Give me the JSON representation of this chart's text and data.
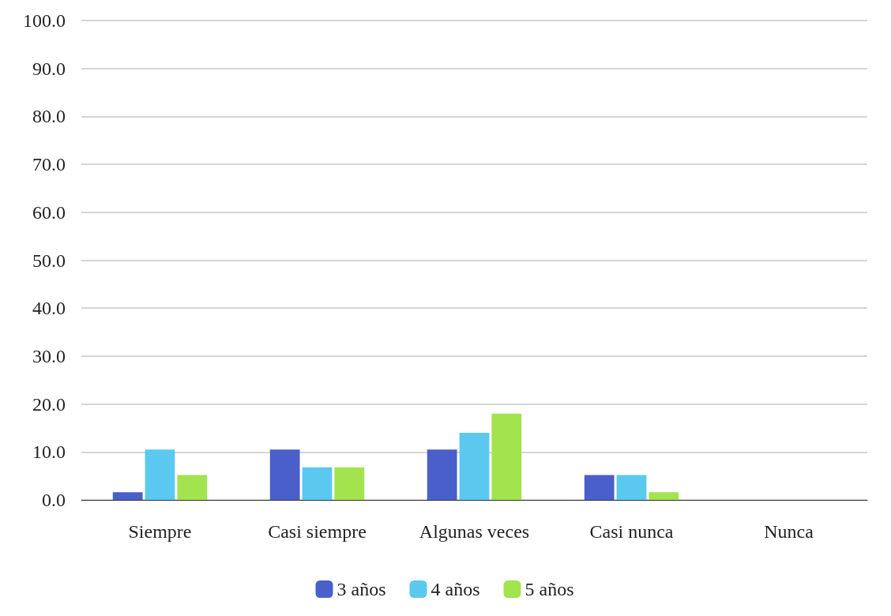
{
  "chart_data": {
    "type": "bar",
    "categories": [
      "Siempre",
      "Casi siempre",
      "Algunas veces",
      "Casi nunca",
      "Nunca"
    ],
    "series": [
      {
        "name": "3 años",
        "color": "#4a5fc9",
        "values": [
          1.6,
          10.5,
          10.5,
          5.2,
          0
        ]
      },
      {
        "name": "4 años",
        "color": "#5bc8ef",
        "values": [
          10.5,
          6.8,
          14.0,
          5.2,
          0
        ]
      },
      {
        "name": "5 años",
        "color": "#a2e34e",
        "values": [
          5.2,
          6.8,
          18.0,
          1.6,
          0
        ]
      }
    ],
    "ylim": [
      0,
      100
    ],
    "yticks": [
      {
        "value": 0,
        "label": "0.0"
      },
      {
        "value": 10,
        "label": "10.0"
      },
      {
        "value": 20,
        "label": "20.0"
      },
      {
        "value": 30,
        "label": "30.0"
      },
      {
        "value": 40,
        "label": "40.0"
      },
      {
        "value": 50,
        "label": "50.0"
      },
      {
        "value": 60,
        "label": "60.0"
      },
      {
        "value": 70,
        "label": "70.0"
      },
      {
        "value": 80,
        "label": "80.0"
      },
      {
        "value": 90,
        "label": "90.0"
      },
      {
        "value": 100,
        "label": "100.0"
      }
    ],
    "grid": "y",
    "legend": "bottom"
  }
}
